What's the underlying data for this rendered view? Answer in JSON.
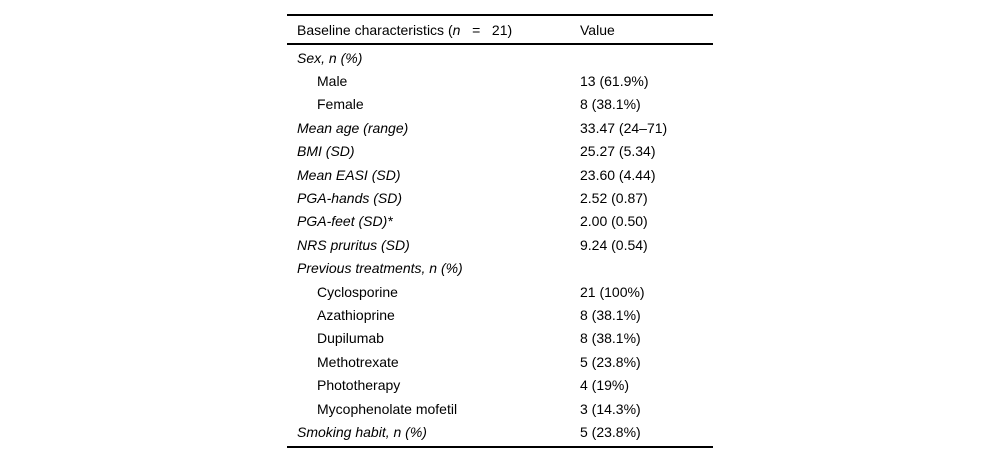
{
  "page": {
    "background_color": "#ffffff",
    "text_color": "#000000",
    "rule_color": "#000000"
  },
  "table": {
    "header": {
      "label_prefix": "Baseline characteristics (",
      "label_n": "n",
      "label_suffix": "   =   21)",
      "value_label": "Value"
    },
    "rows": [
      {
        "label": "Sex, n (%)",
        "value": "",
        "style": "group"
      },
      {
        "label": "Male",
        "value": "13 (61.9%)",
        "style": "sub"
      },
      {
        "label": "Female",
        "value": "8 (38.1%)",
        "style": "sub"
      },
      {
        "label": "Mean age (range)",
        "value": "33.47 (24–71)",
        "style": "group"
      },
      {
        "label": "BMI (SD)",
        "value": "25.27 (5.34)",
        "style": "group"
      },
      {
        "label": "Mean EASI (SD)",
        "value": "23.60 (4.44)",
        "style": "group"
      },
      {
        "label": "PGA-hands (SD)",
        "value": "2.52 (0.87)",
        "style": "group"
      },
      {
        "label": "PGA-feet (SD)*",
        "value": "2.00 (0.50)",
        "style": "group"
      },
      {
        "label": "NRS pruritus (SD)",
        "value": "9.24 (0.54)",
        "style": "group"
      },
      {
        "label": "Previous treatments, n (%)",
        "value": "",
        "style": "group"
      },
      {
        "label": "Cyclosporine",
        "value": "21 (100%)",
        "style": "sub"
      },
      {
        "label": "Azathioprine",
        "value": "8 (38.1%)",
        "style": "sub"
      },
      {
        "label": "Dupilumab",
        "value": "8 (38.1%)",
        "style": "sub"
      },
      {
        "label": "Methotrexate",
        "value": "5 (23.8%)",
        "style": "sub"
      },
      {
        "label": "Phototherapy",
        "value": "4 (19%)",
        "style": "sub"
      },
      {
        "label": "Mycophenolate mofetil",
        "value": "3 (14.3%)",
        "style": "sub"
      },
      {
        "label": "Smoking habit, n (%)",
        "value": "5 (23.8%)",
        "style": "group"
      }
    ]
  }
}
